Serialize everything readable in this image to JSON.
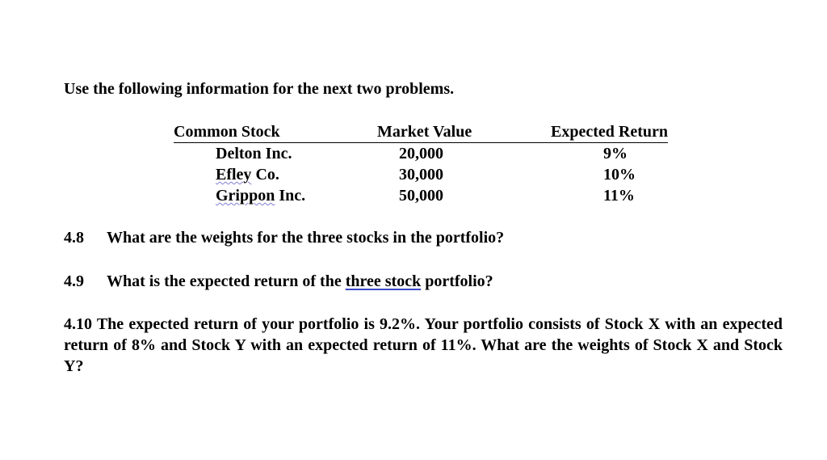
{
  "intro": "Use the following information for the next two problems.",
  "table": {
    "headers": [
      "Common Stock",
      "Market Value",
      "Expected Return"
    ],
    "rows": [
      {
        "stock_a": "Delton",
        "stock_b": " Inc.",
        "market_value": "20,000",
        "expected_return": "9%"
      },
      {
        "stock_a": "Efley",
        "stock_b": " Co.",
        "market_value": "30,000",
        "expected_return": "10%"
      },
      {
        "stock_a": "Grippon",
        "stock_b": " Inc.",
        "market_value": "50,000",
        "expected_return": "11%"
      }
    ]
  },
  "questions": {
    "q48": {
      "num": "4.8",
      "text": "What are the weights for the three stocks in the portfolio?"
    },
    "q49": {
      "num": "4.9",
      "text_before": "What is the expected return of the ",
      "text_link": "three stock",
      "text_after": " portfolio?"
    },
    "q410": {
      "text": "4.10 The expected return of your portfolio is 9.2%.  Your portfolio consists of Stock X with an expected return of 8% and Stock Y with an expected return of 11%.  What are the weights of Stock X and Stock Y?"
    }
  }
}
